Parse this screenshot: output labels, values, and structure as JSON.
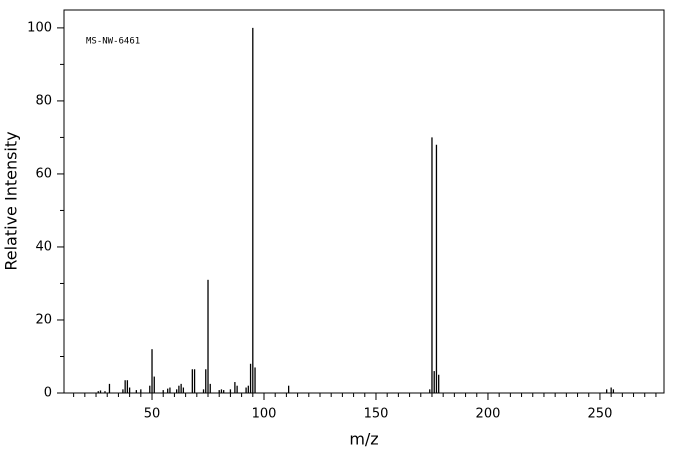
{
  "chart_data": {
    "type": "stem",
    "annotation": "MS-NW-6461",
    "x_label": "m/z",
    "y_label": "Relative Intensity",
    "color": "#000000",
    "x": [
      26,
      27,
      29,
      31,
      37,
      38,
      39,
      40,
      43,
      45,
      49,
      50,
      51,
      55,
      57,
      58,
      61,
      62,
      63,
      64,
      68,
      69,
      73,
      74,
      75,
      76,
      80,
      81,
      82,
      85,
      87,
      88,
      92,
      93,
      94,
      95,
      96,
      111,
      174,
      175,
      176,
      177,
      178,
      253,
      255,
      256
    ],
    "values": [
      0.5,
      0.7,
      0.5,
      2.5,
      1,
      3.5,
      3.5,
      1.5,
      0.8,
      1,
      2,
      12,
      4.5,
      0.8,
      1.2,
      1.5,
      1,
      2,
      2.5,
      1.5,
      6.5,
      6.5,
      1,
      6.5,
      31,
      2.5,
      0.8,
      1,
      0.8,
      1,
      3,
      2,
      1.5,
      2,
      8,
      100,
      7,
      2,
      1,
      70,
      6,
      68,
      5,
      1,
      1.5,
      1
    ],
    "xlim": [
      10.7,
      278.6
    ],
    "ylim": [
      0,
      104.9
    ],
    "xticks": [
      50,
      100,
      150,
      200,
      250
    ],
    "x_minor_ticks": [
      15,
      20,
      25,
      30,
      35,
      40,
      45,
      55,
      60,
      65,
      70,
      75,
      80,
      85,
      90,
      95,
      105,
      110,
      115,
      120,
      125,
      130,
      135,
      140,
      145,
      155,
      160,
      165,
      170,
      175,
      180,
      185,
      190,
      195,
      205,
      210,
      215,
      220,
      225,
      230,
      235,
      240,
      245,
      255,
      260,
      265,
      270,
      275
    ],
    "yticks": [
      0,
      20,
      40,
      60,
      80,
      100
    ],
    "y_minor_ticks": [
      10,
      30,
      50,
      70,
      90
    ]
  }
}
